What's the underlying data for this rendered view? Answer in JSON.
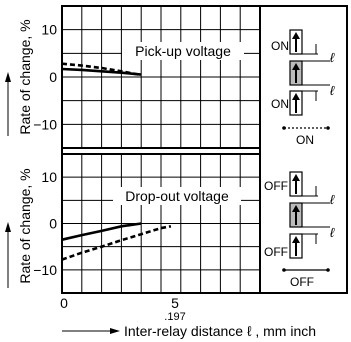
{
  "chart_data": [
    {
      "type": "line",
      "title": "Pick-up voltage",
      "ylabel": "Rate of change, %",
      "xlim": [
        0,
        10
      ],
      "ylim": [
        -15,
        15
      ],
      "yticks": [
        10,
        0,
        -10
      ],
      "grid": true,
      "series": [
        {
          "style": "solid",
          "x": [
            0,
            1,
            2,
            3,
            4
          ],
          "y": [
            1.7,
            1.5,
            1.2,
            0.9,
            0.5
          ]
        },
        {
          "style": "dashed",
          "x": [
            0,
            1,
            2,
            3,
            4
          ],
          "y": [
            2.8,
            2.4,
            1.9,
            1.2,
            0.4
          ]
        }
      ]
    },
    {
      "type": "line",
      "title": "Drop-out voltage",
      "ylabel": "Rate of change, %",
      "xlabel": "Inter-relay distance ℓ , mm inch",
      "xlim": [
        0,
        10
      ],
      "ylim": [
        -15,
        15
      ],
      "yticks": [
        10,
        0,
        -10
      ],
      "xticks": [
        0,
        5
      ],
      "xtick_sublabel": ".197",
      "grid": true,
      "series": [
        {
          "style": "solid",
          "x": [
            0,
            1,
            2,
            3,
            4
          ],
          "y": [
            -3.5,
            -2.5,
            -1.6,
            -0.6,
            0
          ]
        },
        {
          "style": "dashed",
          "x": [
            0,
            1,
            2,
            3,
            4,
            5,
            5.5
          ],
          "y": [
            -7.8,
            -6.3,
            -5,
            -3.6,
            -2.3,
            -1,
            -0.6
          ]
        }
      ]
    }
  ],
  "legend_top": {
    "label_top": "ON",
    "label_bottom": "ON",
    "caption": "ON",
    "dim": "ℓ"
  },
  "legend_bottom": {
    "label_top": "OFF",
    "label_bottom": "OFF",
    "caption": "OFF",
    "dim": "ℓ"
  }
}
